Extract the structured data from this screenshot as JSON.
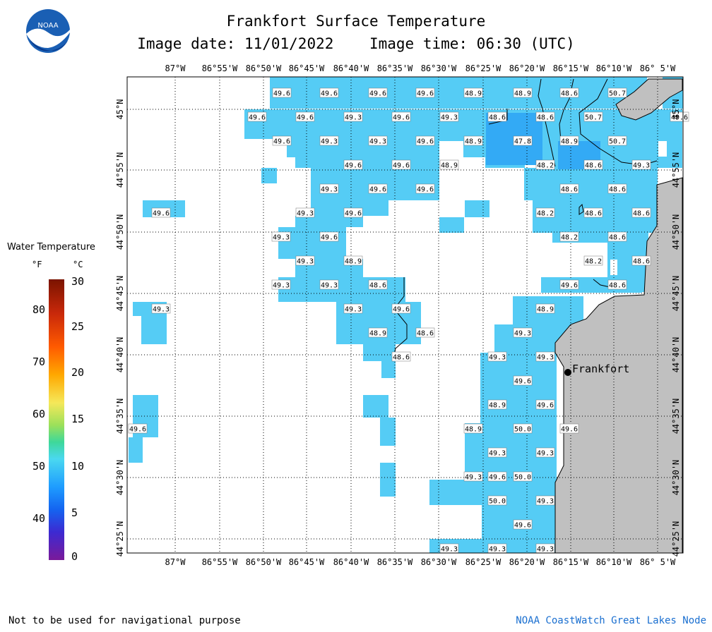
{
  "title": "Frankfort Surface Temperature",
  "subtitle": "Image date: 11/01/2022    Image time: 06:30 (UTC)",
  "logo_text": "NOAA",
  "legend": {
    "title": "Water Temperature",
    "unit_f": "°F",
    "unit_c": "°C",
    "ticks_f": [
      "80",
      "70",
      "60",
      "50",
      "40"
    ],
    "ticks_c": [
      "30",
      "25",
      "20",
      "15",
      "10",
      "5",
      "0"
    ],
    "colors": {
      "water": "#55ccf5",
      "water_dark": "#33aaf5",
      "land": "#c0c0c0"
    }
  },
  "lon_labels": [
    "87°W",
    "86°55'W",
    "86°50'W",
    "86°45'W",
    "86°40'W",
    "86°35'W",
    "86°30'W",
    "86°25'W",
    "86°20'W",
    "86°15'W",
    "86°10'W",
    "86° 5'W"
  ],
  "lat_labels": [
    "45°N",
    "44°55'N",
    "44°50'N",
    "44°45'N",
    "44°40'N",
    "44°35'N",
    "44°30'N",
    "44°25'N"
  ],
  "city": {
    "name": "Frankfort"
  },
  "map_data": {
    "readings_f": [
      "49.6",
      "49.6",
      "49.6",
      "49.6",
      "48.9",
      "48.9",
      "48.6",
      "50.7",
      "49.6",
      "49.6",
      "49.3",
      "49.6",
      "49.3",
      "48.6",
      "48.6",
      "50.7",
      "49.6",
      "49.6",
      "49.3",
      "49.3",
      "49.6",
      "48.9",
      "47.8",
      "48.9",
      "50.7",
      "49.6",
      "49.6",
      "48.9",
      "48.2",
      "48.6",
      "49.3",
      "49.3",
      "49.6",
      "49.6",
      "48.6",
      "48.6",
      "49.6",
      "49.3",
      "49.6",
      "48.2",
      "48.6",
      "48.6",
      "49.3",
      "49.6",
      "48.2",
      "48.6",
      "49.3",
      "48.9",
      "48.2",
      "48.6",
      "49.3",
      "49.3",
      "48.6",
      "49.6",
      "48.6",
      "49.3",
      "49.3",
      "49.6",
      "48.9",
      "48.9",
      "48.6",
      "49.3",
      "48.6",
      "49.3",
      "49.3",
      "49.6",
      "48.9",
      "49.6",
      "49.6",
      "48.9",
      "50.0",
      "49.6",
      "49.3",
      "49.3",
      "49.6",
      "49.3",
      "50.0",
      "50.0",
      "49.3",
      "49.6",
      "49.3",
      "49.3",
      "49.3"
    ]
  },
  "footer": {
    "left": "Not to be used for navigational purpose",
    "right": "NOAA CoastWatch Great Lakes Node"
  }
}
